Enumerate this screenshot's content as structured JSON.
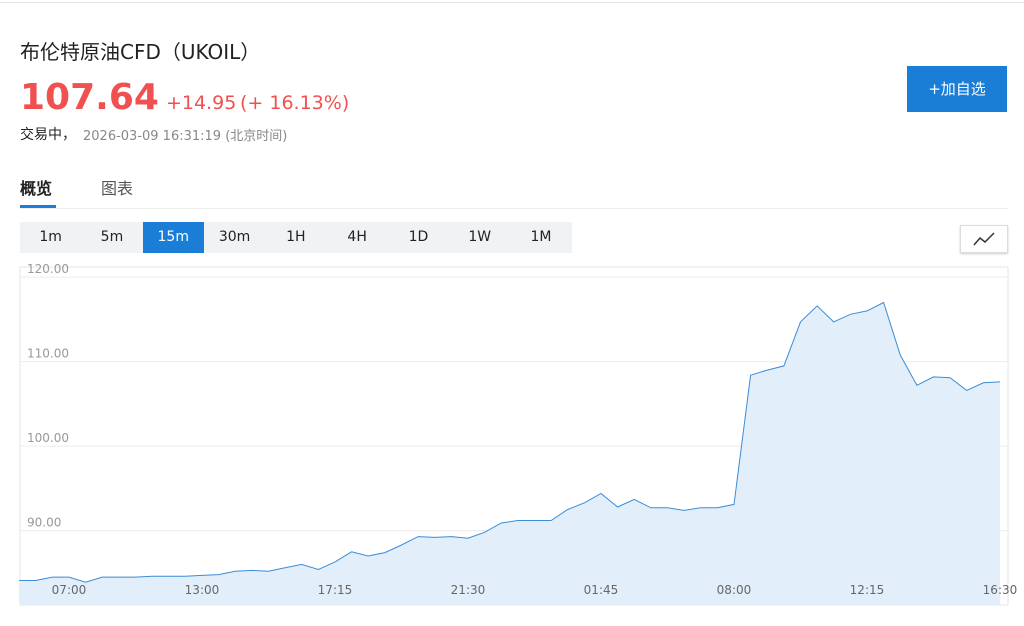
{
  "header": {
    "title": "布伦特原油CFD（UKOIL）",
    "price": "107.64",
    "change": "+14.95",
    "change_pct": "(+ 16.13%)",
    "status": "交易中，",
    "timestamp": "2026-03-09 16:31:19 (北京时间)",
    "watch_button": "+加自选"
  },
  "tabs": [
    "概览",
    "图表"
  ],
  "intervals": [
    "1m",
    "5m",
    "15m",
    "30m",
    "1H",
    "4H",
    "1D",
    "1W",
    "1M"
  ],
  "active_interval": 2,
  "chart_data": {
    "type": "area",
    "color": "#3b8dd4",
    "fill": "#e2effb",
    "grid": true,
    "categories": [
      null,
      null,
      null,
      "07:00",
      null,
      null,
      null,
      null,
      null,
      null,
      null,
      "13:00",
      null,
      null,
      null,
      null,
      null,
      null,
      null,
      "17:15",
      null,
      null,
      null,
      null,
      null,
      null,
      null,
      "21:30",
      null,
      null,
      null,
      null,
      null,
      null,
      null,
      "01:45",
      null,
      null,
      null,
      null,
      null,
      null,
      null,
      "08:00",
      null,
      null,
      null,
      null,
      null,
      null,
      null,
      "12:15",
      null,
      null,
      null,
      null,
      null,
      null,
      null,
      "16:30"
    ],
    "values": [
      84.1,
      84.1,
      84.5,
      84.5,
      83.9,
      84.5,
      84.5,
      84.5,
      84.6,
      84.6,
      84.6,
      84.7,
      84.8,
      85.2,
      85.3,
      85.2,
      85.6,
      86.0,
      85.4,
      86.3,
      87.5,
      87.0,
      87.4,
      88.3,
      89.3,
      89.2,
      89.3,
      89.1,
      89.8,
      90.9,
      91.2,
      91.2,
      91.2,
      92.5,
      93.3,
      94.4,
      92.8,
      93.7,
      92.7,
      92.7,
      92.4,
      92.7,
      92.7,
      93.1,
      108.4,
      109.0,
      109.5,
      114.7,
      116.6,
      114.7,
      115.6,
      116.0,
      117.0,
      110.8,
      107.2,
      108.2,
      108.1,
      106.6,
      107.5,
      107.6
    ],
    "ylim": [
      81.2,
      121.2
    ],
    "yticks": [
      {
        "value": 90,
        "label": "90.00"
      },
      {
        "value": 100,
        "label": "100.00"
      },
      {
        "value": 110,
        "label": "110.00"
      },
      {
        "value": 120,
        "label": "120.00"
      }
    ]
  }
}
